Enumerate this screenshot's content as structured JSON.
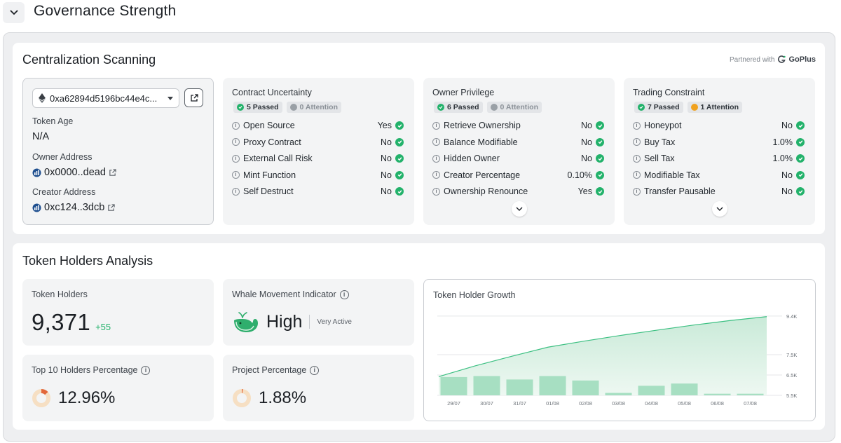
{
  "header": {
    "title": "Governance Strength",
    "toggle_icon": "chevron-down-icon"
  },
  "centralization": {
    "title": "Centralization Scanning",
    "partner_prefix": "Partnered with",
    "partner_name": "GoPlus",
    "token": {
      "address": "0xa62894d5196bc44e4c...",
      "age_label": "Token Age",
      "age_value": "N/A",
      "owner_label": "Owner Address",
      "owner_value": "0x0000..dead",
      "creator_label": "Creator Address",
      "creator_value": "0xc124..3dcb"
    },
    "panels": [
      {
        "title": "Contract Uncertainty",
        "passed": "5 Passed",
        "attention": "0 Attention",
        "attention_status": "none",
        "rows": [
          {
            "name": "Open Source",
            "value": "Yes"
          },
          {
            "name": "Proxy Contract",
            "value": "No"
          },
          {
            "name": "External Call Risk",
            "value": "No"
          },
          {
            "name": "Mint Function",
            "value": "No"
          },
          {
            "name": "Self Destruct",
            "value": "No"
          }
        ],
        "expandable": false
      },
      {
        "title": "Owner Privilege",
        "passed": "6 Passed",
        "attention": "0 Attention",
        "attention_status": "none",
        "rows": [
          {
            "name": "Retrieve Ownership",
            "value": "No"
          },
          {
            "name": "Balance Modifiable",
            "value": "No"
          },
          {
            "name": "Hidden Owner",
            "value": "No"
          },
          {
            "name": "Creator Percentage",
            "value": "0.10%"
          },
          {
            "name": "Ownership Renounce",
            "value": "Yes"
          }
        ],
        "expandable": true
      },
      {
        "title": "Trading Constraint",
        "passed": "7 Passed",
        "attention": "1 Attention",
        "attention_status": "warning",
        "rows": [
          {
            "name": "Honeypot",
            "value": "No"
          },
          {
            "name": "Buy Tax",
            "value": "1.0%"
          },
          {
            "name": "Sell Tax",
            "value": "1.0%"
          },
          {
            "name": "Modifiable Tax",
            "value": "No"
          },
          {
            "name": "Transfer Pausable",
            "value": "No"
          }
        ],
        "expandable": true
      }
    ]
  },
  "holders": {
    "title": "Token Holders Analysis",
    "token_holders_label": "Token Holders",
    "token_holders_value": "9,371",
    "token_holders_delta": "+55",
    "whale_label": "Whale Movement Indicator",
    "whale_value": "High",
    "whale_sub": "Very Active",
    "top10_label": "Top 10 Holders Percentage",
    "top10_value": "12.96%",
    "top10_fraction": 0.1296,
    "project_label": "Project Percentage",
    "project_value": "1.88%",
    "project_fraction": 0.0188
  },
  "chart_data": {
    "type": "bar",
    "title": "Token Holder Growth",
    "categories": [
      "29/07",
      "30/07",
      "31/07",
      "01/08",
      "02/08",
      "03/08",
      "04/08",
      "05/08",
      "06/08",
      "07/08"
    ],
    "series": [
      {
        "type": "area",
        "values": [
          6420,
          6950,
          7420,
          7870,
          8170,
          8450,
          8710,
          8960,
          9180,
          9371
        ]
      },
      {
        "type": "bar",
        "values": [
          6400,
          6450,
          6280,
          6450,
          6230,
          5620,
          5970,
          6080,
          5580,
          5580
        ]
      }
    ],
    "ylim": [
      5500,
      9500
    ],
    "yticks": [
      "9.4K",
      "7.5K",
      "6.5K",
      "5.5K"
    ],
    "ytick_values": [
      9400,
      7500,
      6500,
      5500
    ],
    "grid": true,
    "colors": {
      "area": "#c9ead8",
      "line": "#3cc082",
      "bar": "#a7dfc2"
    }
  }
}
